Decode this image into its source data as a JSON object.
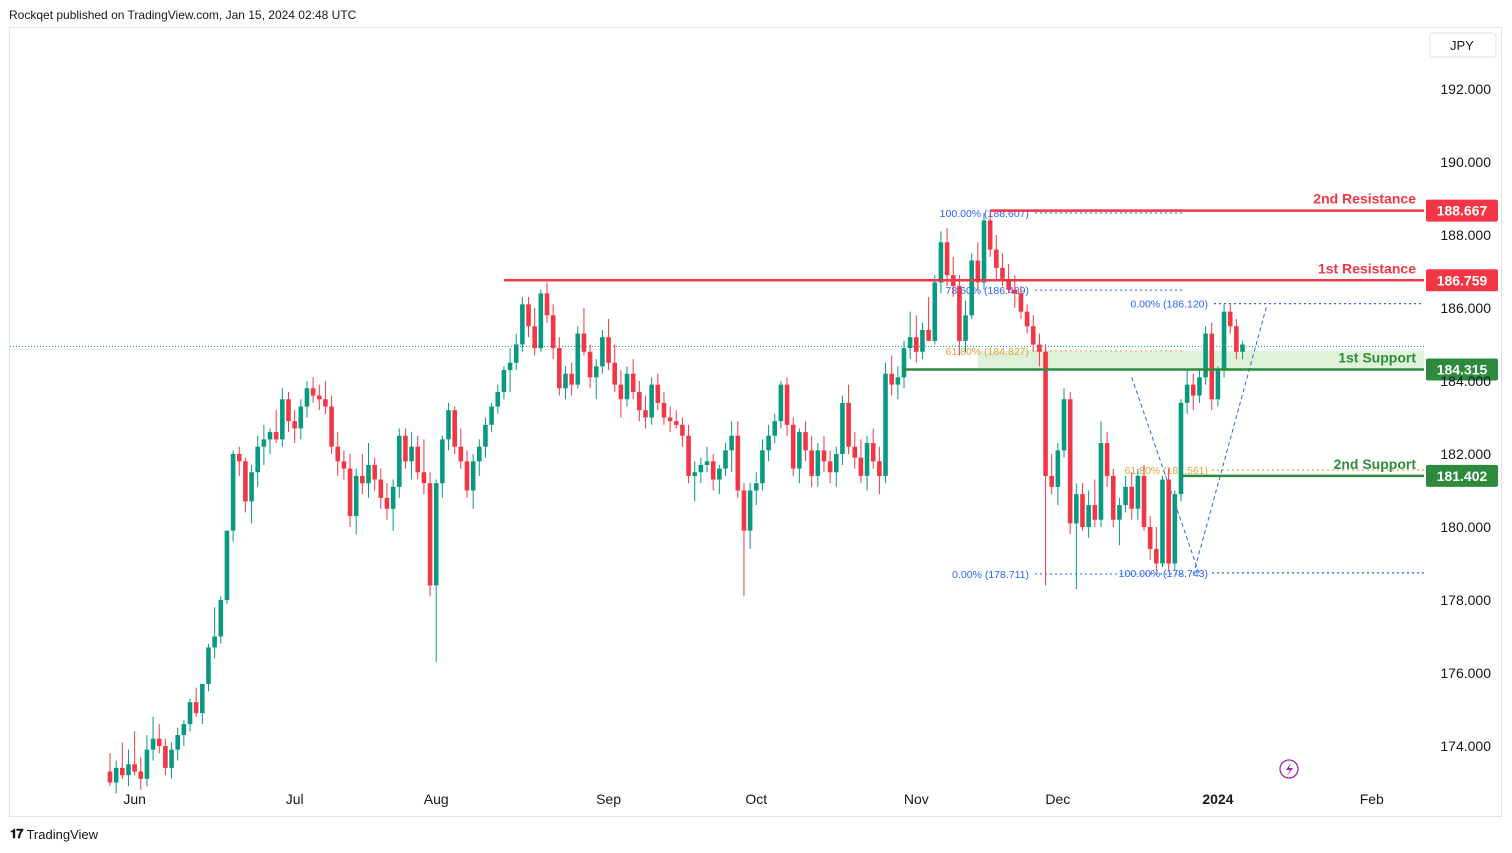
{
  "header": {
    "text": "Rockqet published on TradingView.com, Jan 15, 2024 02:48 UTC"
  },
  "footer": {
    "brand": "TradingView"
  },
  "colors": {
    "bull": "#089981",
    "bear": "#f23645",
    "resistance": "#f23645",
    "support": "#2e8b3e",
    "fib_blue": "#2962ff",
    "fib_orange": "#e6a23c",
    "zone": "#d6efcf",
    "grid_text": "#131722",
    "last_price_line": "#089981",
    "lightning": "#9c27b0"
  },
  "chart_data": {
    "type": "candlestick",
    "currency": "JPY",
    "ylim": [
      172.8,
      193.8
    ],
    "y_ticks": [
      "192.000",
      "190.000",
      "188.000",
      "186.000",
      "184.000",
      "182.000",
      "180.000",
      "178.000",
      "176.000",
      "174.000"
    ],
    "x_ticks": [
      "Jun",
      "Jul",
      "Aug",
      "Sep",
      "Oct",
      "Nov",
      "Dec",
      "2024",
      "Feb"
    ],
    "date_range": [
      "2023-06-01",
      "2024-01-15"
    ],
    "candles": [
      [
        173.3,
        173.8,
        172.9,
        173.0
      ],
      [
        173.0,
        173.6,
        172.7,
        173.4
      ],
      [
        173.4,
        174.1,
        173.1,
        173.2
      ],
      [
        173.2,
        173.9,
        172.9,
        173.5
      ],
      [
        173.5,
        174.4,
        173.2,
        173.3
      ],
      [
        173.3,
        173.7,
        172.8,
        173.1
      ],
      [
        173.1,
        174.3,
        172.9,
        173.9
      ],
      [
        173.9,
        174.8,
        173.6,
        174.2
      ],
      [
        174.2,
        174.6,
        173.8,
        174.0
      ],
      [
        174.0,
        174.2,
        173.2,
        173.4
      ],
      [
        173.4,
        174.1,
        173.1,
        173.9
      ],
      [
        173.9,
        174.5,
        173.6,
        174.3
      ],
      [
        174.3,
        174.7,
        174.0,
        174.6
      ],
      [
        174.6,
        175.3,
        174.4,
        175.2
      ],
      [
        175.2,
        175.6,
        174.8,
        174.9
      ],
      [
        174.9,
        175.5,
        174.6,
        175.7
      ],
      [
        175.7,
        176.8,
        175.5,
        176.7
      ],
      [
        176.7,
        177.8,
        176.4,
        177.0
      ],
      [
        177.0,
        178.1,
        176.8,
        178.0
      ],
      [
        178.0,
        179.9,
        177.9,
        179.9
      ],
      [
        179.9,
        182.1,
        179.6,
        182.0
      ],
      [
        182.0,
        182.2,
        181.4,
        181.8
      ],
      [
        181.8,
        181.9,
        180.4,
        180.7
      ],
      [
        180.7,
        181.7,
        180.1,
        181.5
      ],
      [
        181.5,
        182.5,
        181.1,
        182.2
      ],
      [
        182.2,
        182.8,
        181.7,
        182.4
      ],
      [
        182.4,
        182.7,
        182.0,
        182.6
      ],
      [
        182.6,
        183.2,
        182.3,
        182.4
      ],
      [
        182.4,
        183.8,
        182.2,
        183.5
      ],
      [
        183.5,
        183.7,
        182.6,
        182.9
      ],
      [
        182.9,
        183.2,
        182.3,
        182.7
      ],
      [
        182.7,
        183.5,
        182.4,
        183.3
      ],
      [
        183.3,
        184.0,
        183.0,
        183.8
      ],
      [
        183.8,
        184.1,
        183.4,
        183.6
      ],
      [
        183.6,
        183.9,
        183.2,
        183.5
      ],
      [
        183.5,
        184.0,
        183.1,
        183.3
      ],
      [
        183.3,
        183.6,
        182.0,
        182.2
      ],
      [
        182.2,
        182.6,
        181.4,
        181.8
      ],
      [
        181.8,
        182.1,
        181.3,
        181.6
      ],
      [
        181.6,
        182.0,
        180.0,
        180.3
      ],
      [
        180.3,
        181.6,
        179.8,
        181.4
      ],
      [
        181.4,
        182.0,
        180.9,
        181.2
      ],
      [
        181.2,
        182.3,
        180.8,
        181.7
      ],
      [
        181.7,
        181.9,
        181.0,
        181.3
      ],
      [
        181.3,
        181.6,
        180.5,
        180.8
      ],
      [
        180.8,
        181.2,
        180.2,
        180.5
      ],
      [
        180.5,
        181.3,
        179.9,
        181.1
      ],
      [
        181.1,
        182.7,
        180.8,
        182.5
      ],
      [
        182.5,
        182.7,
        181.6,
        181.8
      ],
      [
        181.8,
        182.6,
        181.3,
        182.2
      ],
      [
        182.2,
        182.5,
        181.3,
        181.5
      ],
      [
        181.5,
        182.4,
        180.9,
        181.2
      ],
      [
        181.2,
        181.5,
        178.1,
        178.4
      ],
      [
        178.4,
        181.3,
        176.3,
        181.2
      ],
      [
        181.2,
        182.5,
        180.8,
        182.4
      ],
      [
        182.4,
        183.4,
        182.1,
        183.2
      ],
      [
        183.2,
        183.3,
        182.0,
        182.2
      ],
      [
        182.2,
        182.7,
        181.6,
        181.8
      ],
      [
        181.8,
        182.1,
        180.8,
        181.0
      ],
      [
        181.0,
        182.0,
        180.5,
        181.8
      ],
      [
        181.8,
        182.4,
        181.4,
        182.2
      ],
      [
        182.2,
        183.0,
        181.9,
        182.8
      ],
      [
        182.8,
        183.4,
        182.6,
        183.3
      ],
      [
        183.3,
        183.9,
        183.1,
        183.7
      ],
      [
        183.7,
        184.4,
        183.5,
        184.3
      ],
      [
        184.3,
        184.9,
        183.7,
        184.5
      ],
      [
        184.5,
        185.3,
        184.3,
        185.0
      ],
      [
        185.0,
        186.3,
        184.8,
        186.1
      ],
      [
        186.1,
        186.3,
        185.2,
        185.5
      ],
      [
        185.5,
        186.0,
        184.7,
        184.9
      ],
      [
        184.9,
        186.5,
        184.8,
        186.4
      ],
      [
        186.4,
        186.7,
        185.6,
        185.8
      ],
      [
        185.8,
        186.1,
        184.6,
        184.9
      ],
      [
        184.9,
        185.2,
        183.6,
        183.8
      ],
      [
        183.8,
        184.4,
        183.5,
        184.2
      ],
      [
        184.2,
        184.5,
        183.6,
        183.9
      ],
      [
        183.9,
        185.5,
        183.8,
        185.3
      ],
      [
        185.3,
        186.0,
        184.7,
        184.8
      ],
      [
        184.8,
        185.0,
        183.8,
        184.1
      ],
      [
        184.1,
        184.6,
        183.5,
        184.4
      ],
      [
        184.4,
        185.4,
        184.2,
        185.2
      ],
      [
        185.2,
        185.7,
        184.3,
        184.5
      ],
      [
        184.5,
        185.0,
        183.7,
        183.9
      ],
      [
        183.9,
        184.3,
        183.0,
        183.5
      ],
      [
        183.5,
        184.4,
        183.3,
        184.2
      ],
      [
        184.2,
        184.6,
        183.5,
        183.7
      ],
      [
        183.7,
        184.0,
        182.9,
        183.2
      ],
      [
        183.2,
        183.6,
        182.7,
        183.0
      ],
      [
        183.0,
        184.1,
        182.8,
        183.9
      ],
      [
        183.9,
        184.2,
        183.2,
        183.4
      ],
      [
        183.4,
        183.7,
        182.8,
        183.0
      ],
      [
        183.0,
        183.3,
        182.6,
        182.9
      ],
      [
        182.9,
        183.2,
        182.7,
        182.8
      ],
      [
        182.8,
        183.0,
        182.2,
        182.5
      ],
      [
        182.5,
        182.8,
        181.2,
        181.4
      ],
      [
        181.4,
        181.8,
        180.7,
        181.5
      ],
      [
        181.5,
        181.9,
        181.2,
        181.7
      ],
      [
        181.7,
        182.2,
        181.5,
        181.8
      ],
      [
        181.8,
        182.0,
        181.0,
        181.3
      ],
      [
        181.3,
        181.7,
        180.9,
        181.6
      ],
      [
        181.6,
        182.3,
        181.4,
        182.1
      ],
      [
        182.1,
        182.9,
        181.5,
        182.5
      ],
      [
        182.5,
        182.9,
        180.8,
        181.0
      ],
      [
        181.0,
        181.2,
        178.1,
        179.9
      ],
      [
        179.9,
        181.2,
        179.4,
        181.0
      ],
      [
        181.0,
        181.5,
        180.6,
        181.2
      ],
      [
        181.2,
        182.4,
        181.0,
        182.1
      ],
      [
        182.1,
        182.8,
        181.8,
        182.5
      ],
      [
        182.5,
        183.1,
        182.3,
        182.9
      ],
      [
        182.9,
        184.0,
        182.7,
        183.9
      ],
      [
        183.9,
        184.1,
        182.5,
        182.8
      ],
      [
        182.8,
        183.0,
        181.4,
        181.6
      ],
      [
        181.6,
        182.7,
        181.2,
        182.6
      ],
      [
        182.6,
        182.9,
        181.8,
        182.1
      ],
      [
        182.1,
        182.5,
        181.1,
        181.4
      ],
      [
        181.4,
        182.3,
        181.1,
        182.1
      ],
      [
        182.1,
        182.5,
        181.5,
        181.8
      ],
      [
        181.8,
        182.1,
        181.2,
        181.5
      ],
      [
        181.5,
        182.2,
        181.1,
        182.0
      ],
      [
        182.0,
        183.6,
        181.7,
        183.4
      ],
      [
        183.4,
        183.9,
        182.0,
        182.2
      ],
      [
        182.2,
        182.6,
        181.6,
        181.9
      ],
      [
        181.9,
        182.4,
        181.2,
        181.4
      ],
      [
        181.4,
        182.5,
        181.0,
        182.3
      ],
      [
        182.3,
        182.7,
        181.6,
        181.8
      ],
      [
        181.8,
        182.2,
        180.9,
        181.4
      ],
      [
        181.4,
        184.5,
        181.2,
        184.2
      ],
      [
        184.2,
        184.7,
        183.6,
        183.9
      ],
      [
        183.9,
        184.4,
        183.5,
        184.1
      ],
      [
        184.1,
        185.1,
        183.8,
        184.9
      ],
      [
        184.9,
        185.9,
        184.6,
        185.2
      ],
      [
        185.2,
        185.8,
        184.5,
        184.8
      ],
      [
        184.8,
        185.6,
        184.6,
        185.4
      ],
      [
        185.4,
        186.3,
        185.1,
        185.1
      ],
      [
        185.1,
        186.9,
        185.0,
        186.7
      ],
      [
        186.7,
        188.1,
        186.4,
        187.8
      ],
      [
        187.8,
        188.2,
        186.6,
        186.9
      ],
      [
        186.9,
        187.4,
        186.3,
        186.6
      ],
      [
        186.6,
        186.9,
        184.7,
        185.1
      ],
      [
        185.1,
        186.2,
        184.8,
        185.8
      ],
      [
        185.8,
        187.5,
        185.7,
        187.3
      ],
      [
        187.3,
        187.8,
        186.5,
        186.7
      ],
      [
        186.7,
        188.6,
        186.5,
        188.4
      ],
      [
        188.4,
        188.6,
        187.4,
        187.6
      ],
      [
        187.6,
        188.0,
        186.8,
        187.1
      ],
      [
        187.1,
        187.5,
        186.6,
        186.8
      ],
      [
        186.8,
        187.2,
        186.4,
        186.5
      ],
      [
        186.5,
        186.9,
        186.0,
        186.4
      ],
      [
        186.4,
        186.6,
        185.7,
        185.9
      ],
      [
        185.9,
        186.1,
        185.3,
        185.5
      ],
      [
        185.5,
        185.8,
        184.8,
        185.0
      ],
      [
        185.0,
        185.3,
        184.4,
        184.8
      ],
      [
        184.8,
        185.0,
        178.4,
        181.4
      ],
      [
        181.4,
        182.0,
        180.9,
        181.1
      ],
      [
        181.1,
        182.3,
        180.6,
        182.1
      ],
      [
        182.1,
        183.8,
        181.9,
        183.5
      ],
      [
        183.5,
        183.7,
        179.8,
        180.1
      ],
      [
        180.1,
        181.2,
        178.3,
        180.9
      ],
      [
        180.9,
        181.2,
        179.9,
        180.0
      ],
      [
        180.0,
        181.0,
        179.7,
        180.6
      ],
      [
        180.6,
        181.3,
        180.0,
        180.2
      ],
      [
        180.2,
        182.9,
        180.0,
        182.3
      ],
      [
        182.3,
        182.6,
        181.1,
        181.4
      ],
      [
        181.4,
        181.6,
        180.0,
        180.2
      ],
      [
        180.2,
        180.8,
        179.5,
        180.6
      ],
      [
        180.6,
        181.4,
        180.4,
        181.1
      ],
      [
        181.1,
        181.5,
        180.2,
        180.5
      ],
      [
        180.5,
        181.6,
        180.2,
        181.4
      ],
      [
        181.4,
        181.7,
        179.9,
        180.0
      ],
      [
        180.0,
        180.3,
        179.1,
        179.4
      ],
      [
        179.4,
        180.0,
        178.8,
        179.0
      ],
      [
        179.0,
        181.4,
        178.9,
        181.3
      ],
      [
        181.3,
        181.6,
        178.8,
        179.0
      ],
      [
        179.0,
        181.0,
        178.8,
        180.9
      ],
      [
        180.9,
        183.5,
        180.7,
        183.4
      ],
      [
        183.4,
        184.3,
        183.1,
        183.9
      ],
      [
        183.9,
        184.2,
        183.2,
        183.6
      ],
      [
        183.6,
        184.3,
        183.4,
        184.1
      ],
      [
        184.1,
        185.5,
        183.9,
        185.3
      ],
      [
        185.3,
        185.6,
        183.2,
        183.5
      ],
      [
        183.5,
        184.4,
        183.3,
        184.3
      ],
      [
        184.3,
        186.1,
        184.1,
        185.9
      ],
      [
        185.9,
        186.1,
        185.3,
        185.5
      ],
      [
        185.5,
        185.7,
        184.6,
        184.8
      ],
      [
        184.8,
        185.1,
        184.6,
        185.0
      ]
    ],
    "last_price": 184.95,
    "levels": [
      {
        "label": "2nd Resistance",
        "price_label": "188.667",
        "value": 188.667,
        "kind": "resistance",
        "from_index": 143
      },
      {
        "label": "1st Resistance",
        "price_label": "186.759",
        "value": 186.759,
        "kind": "resistance",
        "from_index": 64
      },
      {
        "label": "1st Support",
        "price_label": "184.315",
        "value": 184.315,
        "kind": "support",
        "from_index": 129
      },
      {
        "label": "2nd Support",
        "price_label": "181.402",
        "value": 181.402,
        "kind": "support",
        "from_index": 174
      }
    ],
    "support_zone": {
      "low": 184.315,
      "high": 184.827,
      "from_index": 141
    },
    "fib_left": [
      {
        "label": "100.00% (188.607)",
        "value": 188.607,
        "color": "blue"
      },
      {
        "label": "78.60% (186.489)",
        "value": 186.489,
        "color": "blue"
      },
      {
        "label": "61.80% (184.827)",
        "value": 184.827,
        "color": "orange"
      },
      {
        "label": "0.00% (178.711)",
        "value": 178.711,
        "color": "blue"
      }
    ],
    "fib_right": [
      {
        "label": "0.00% (186.120)",
        "value": 186.12,
        "color": "blue"
      },
      {
        "label": "61.80% (181.561)",
        "value": 181.561,
        "color": "orange"
      },
      {
        "label": "100.00% (178.743)",
        "value": 178.743,
        "color": "blue"
      }
    ]
  }
}
